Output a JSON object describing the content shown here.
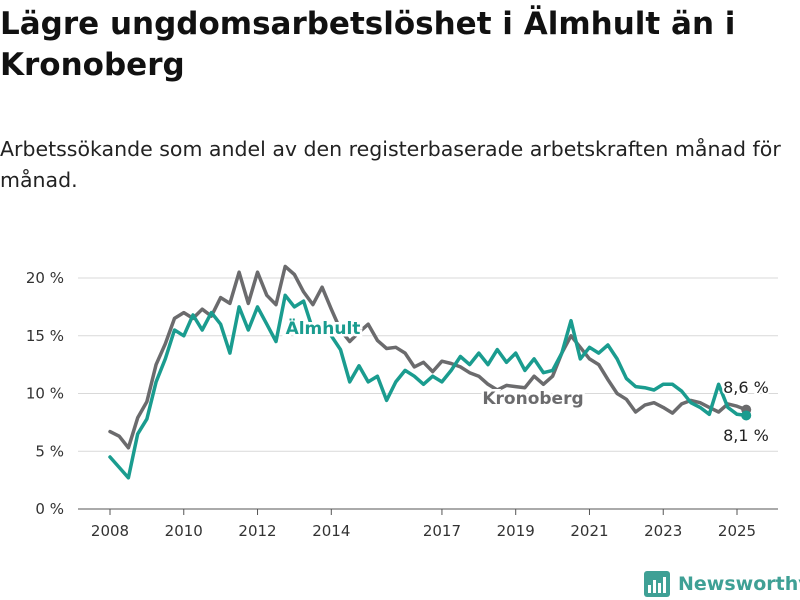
{
  "title": "Lägre ungdomsarbetslöshet i Älmhult än i Kronoberg",
  "subtitle": "Arbetssökande som andel av den registerbaserade arbetskraften månad för månad.",
  "brand": "Newsworthy",
  "colors": {
    "almhult": "#1a9c8f",
    "kronoberg": "#6b6b6d",
    "grid": "#d9d9d9",
    "brand": "#3fa095"
  },
  "chart_data": {
    "type": "line",
    "title": "Lägre ungdomsarbetslöshet i Älmhult än i Kronoberg",
    "subtitle": "Arbetssökande som andel av den registerbaserade arbetskraften månad för månad.",
    "ylim": [
      0,
      21
    ],
    "xlim": [
      2007.6,
      2025.8
    ],
    "y_ticks": [
      0,
      5,
      10,
      15,
      20
    ],
    "y_tick_labels": [
      "0 %",
      "5 %",
      "10 %",
      "15 %",
      "20 %"
    ],
    "x_ticks": [
      2008,
      2010,
      2012,
      2014,
      2017,
      2019,
      2021,
      2023,
      2025
    ],
    "x_tick_labels": [
      "2008",
      "2010",
      "2012",
      "2014",
      "2017",
      "2019",
      "2021",
      "2023",
      "2025"
    ],
    "grid": "horizontal",
    "series": [
      {
        "name": "Kronoberg",
        "color": "#6b6b6d",
        "end_label": "8,6 %",
        "points": [
          [
            2008.0,
            6.7
          ],
          [
            2008.25,
            6.3
          ],
          [
            2008.5,
            5.3
          ],
          [
            2008.75,
            7.9
          ],
          [
            2009.0,
            9.3
          ],
          [
            2009.25,
            12.5
          ],
          [
            2009.5,
            14.3
          ],
          [
            2009.75,
            16.5
          ],
          [
            2010.0,
            17.0
          ],
          [
            2010.25,
            16.5
          ],
          [
            2010.5,
            17.3
          ],
          [
            2010.75,
            16.7
          ],
          [
            2011.0,
            18.3
          ],
          [
            2011.25,
            17.8
          ],
          [
            2011.5,
            20.5
          ],
          [
            2011.75,
            17.8
          ],
          [
            2012.0,
            20.5
          ],
          [
            2012.25,
            18.5
          ],
          [
            2012.5,
            17.7
          ],
          [
            2012.75,
            21.0
          ],
          [
            2013.0,
            20.3
          ],
          [
            2013.25,
            18.8
          ],
          [
            2013.5,
            17.7
          ],
          [
            2013.75,
            19.2
          ],
          [
            2014.0,
            17.3
          ],
          [
            2014.25,
            15.5
          ],
          [
            2014.5,
            14.5
          ],
          [
            2014.75,
            15.3
          ],
          [
            2015.0,
            16.0
          ],
          [
            2015.25,
            14.6
          ],
          [
            2015.5,
            13.9
          ],
          [
            2015.75,
            14.0
          ],
          [
            2016.0,
            13.5
          ],
          [
            2016.25,
            12.3
          ],
          [
            2016.5,
            12.7
          ],
          [
            2016.75,
            11.9
          ],
          [
            2017.0,
            12.8
          ],
          [
            2017.25,
            12.6
          ],
          [
            2017.5,
            12.3
          ],
          [
            2017.75,
            11.8
          ],
          [
            2018.0,
            11.5
          ],
          [
            2018.25,
            10.8
          ],
          [
            2018.5,
            10.3
          ],
          [
            2018.75,
            10.7
          ],
          [
            2019.0,
            10.6
          ],
          [
            2019.25,
            10.5
          ],
          [
            2019.5,
            11.5
          ],
          [
            2019.75,
            10.8
          ],
          [
            2020.0,
            11.5
          ],
          [
            2020.25,
            13.5
          ],
          [
            2020.5,
            15.0
          ],
          [
            2020.75,
            14.0
          ],
          [
            2021.0,
            13.0
          ],
          [
            2021.25,
            12.5
          ],
          [
            2021.5,
            11.2
          ],
          [
            2021.75,
            10.0
          ],
          [
            2022.0,
            9.5
          ],
          [
            2022.25,
            8.4
          ],
          [
            2022.5,
            9.0
          ],
          [
            2022.75,
            9.2
          ],
          [
            2023.0,
            8.8
          ],
          [
            2023.25,
            8.3
          ],
          [
            2023.5,
            9.1
          ],
          [
            2023.75,
            9.4
          ],
          [
            2024.0,
            9.2
          ],
          [
            2024.25,
            8.8
          ],
          [
            2024.5,
            8.4
          ],
          [
            2024.75,
            9.1
          ],
          [
            2025.0,
            8.9
          ],
          [
            2025.25,
            8.6
          ]
        ]
      },
      {
        "name": "Älmhult",
        "color": "#1a9c8f",
        "end_label": "8,1 %",
        "points": [
          [
            2008.0,
            4.5
          ],
          [
            2008.25,
            3.6
          ],
          [
            2008.5,
            2.7
          ],
          [
            2008.75,
            6.5
          ],
          [
            2009.0,
            7.8
          ],
          [
            2009.25,
            11.0
          ],
          [
            2009.5,
            13.0
          ],
          [
            2009.75,
            15.5
          ],
          [
            2010.0,
            15.0
          ],
          [
            2010.25,
            16.8
          ],
          [
            2010.5,
            15.5
          ],
          [
            2010.75,
            17.0
          ],
          [
            2011.0,
            16.0
          ],
          [
            2011.25,
            13.5
          ],
          [
            2011.5,
            17.5
          ],
          [
            2011.75,
            15.5
          ],
          [
            2012.0,
            17.5
          ],
          [
            2012.25,
            16.0
          ],
          [
            2012.5,
            14.5
          ],
          [
            2012.75,
            18.5
          ],
          [
            2013.0,
            17.5
          ],
          [
            2013.25,
            18.0
          ],
          [
            2013.5,
            15.5
          ],
          [
            2013.75,
            16.0
          ],
          [
            2014.0,
            15.0
          ],
          [
            2014.25,
            13.8
          ],
          [
            2014.5,
            11.0
          ],
          [
            2014.75,
            12.4
          ],
          [
            2015.0,
            11.0
          ],
          [
            2015.25,
            11.5
          ],
          [
            2015.5,
            9.4
          ],
          [
            2015.75,
            11.0
          ],
          [
            2016.0,
            12.0
          ],
          [
            2016.25,
            11.5
          ],
          [
            2016.5,
            10.8
          ],
          [
            2016.75,
            11.5
          ],
          [
            2017.0,
            11.0
          ],
          [
            2017.25,
            12.0
          ],
          [
            2017.5,
            13.2
          ],
          [
            2017.75,
            12.5
          ],
          [
            2018.0,
            13.5
          ],
          [
            2018.25,
            12.5
          ],
          [
            2018.5,
            13.8
          ],
          [
            2018.75,
            12.7
          ],
          [
            2019.0,
            13.5
          ],
          [
            2019.25,
            12.0
          ],
          [
            2019.5,
            13.0
          ],
          [
            2019.75,
            11.8
          ],
          [
            2020.0,
            12.0
          ],
          [
            2020.25,
            13.5
          ],
          [
            2020.5,
            16.3
          ],
          [
            2020.75,
            13.0
          ],
          [
            2021.0,
            14.0
          ],
          [
            2021.25,
            13.5
          ],
          [
            2021.5,
            14.2
          ],
          [
            2021.75,
            13.0
          ],
          [
            2022.0,
            11.3
          ],
          [
            2022.25,
            10.6
          ],
          [
            2022.5,
            10.5
          ],
          [
            2022.75,
            10.3
          ],
          [
            2023.0,
            10.8
          ],
          [
            2023.25,
            10.8
          ],
          [
            2023.5,
            10.2
          ],
          [
            2023.75,
            9.2
          ],
          [
            2024.0,
            8.8
          ],
          [
            2024.25,
            8.2
          ],
          [
            2024.5,
            10.8
          ],
          [
            2024.75,
            8.8
          ],
          [
            2025.0,
            8.2
          ],
          [
            2025.25,
            8.1
          ]
        ]
      }
    ]
  }
}
